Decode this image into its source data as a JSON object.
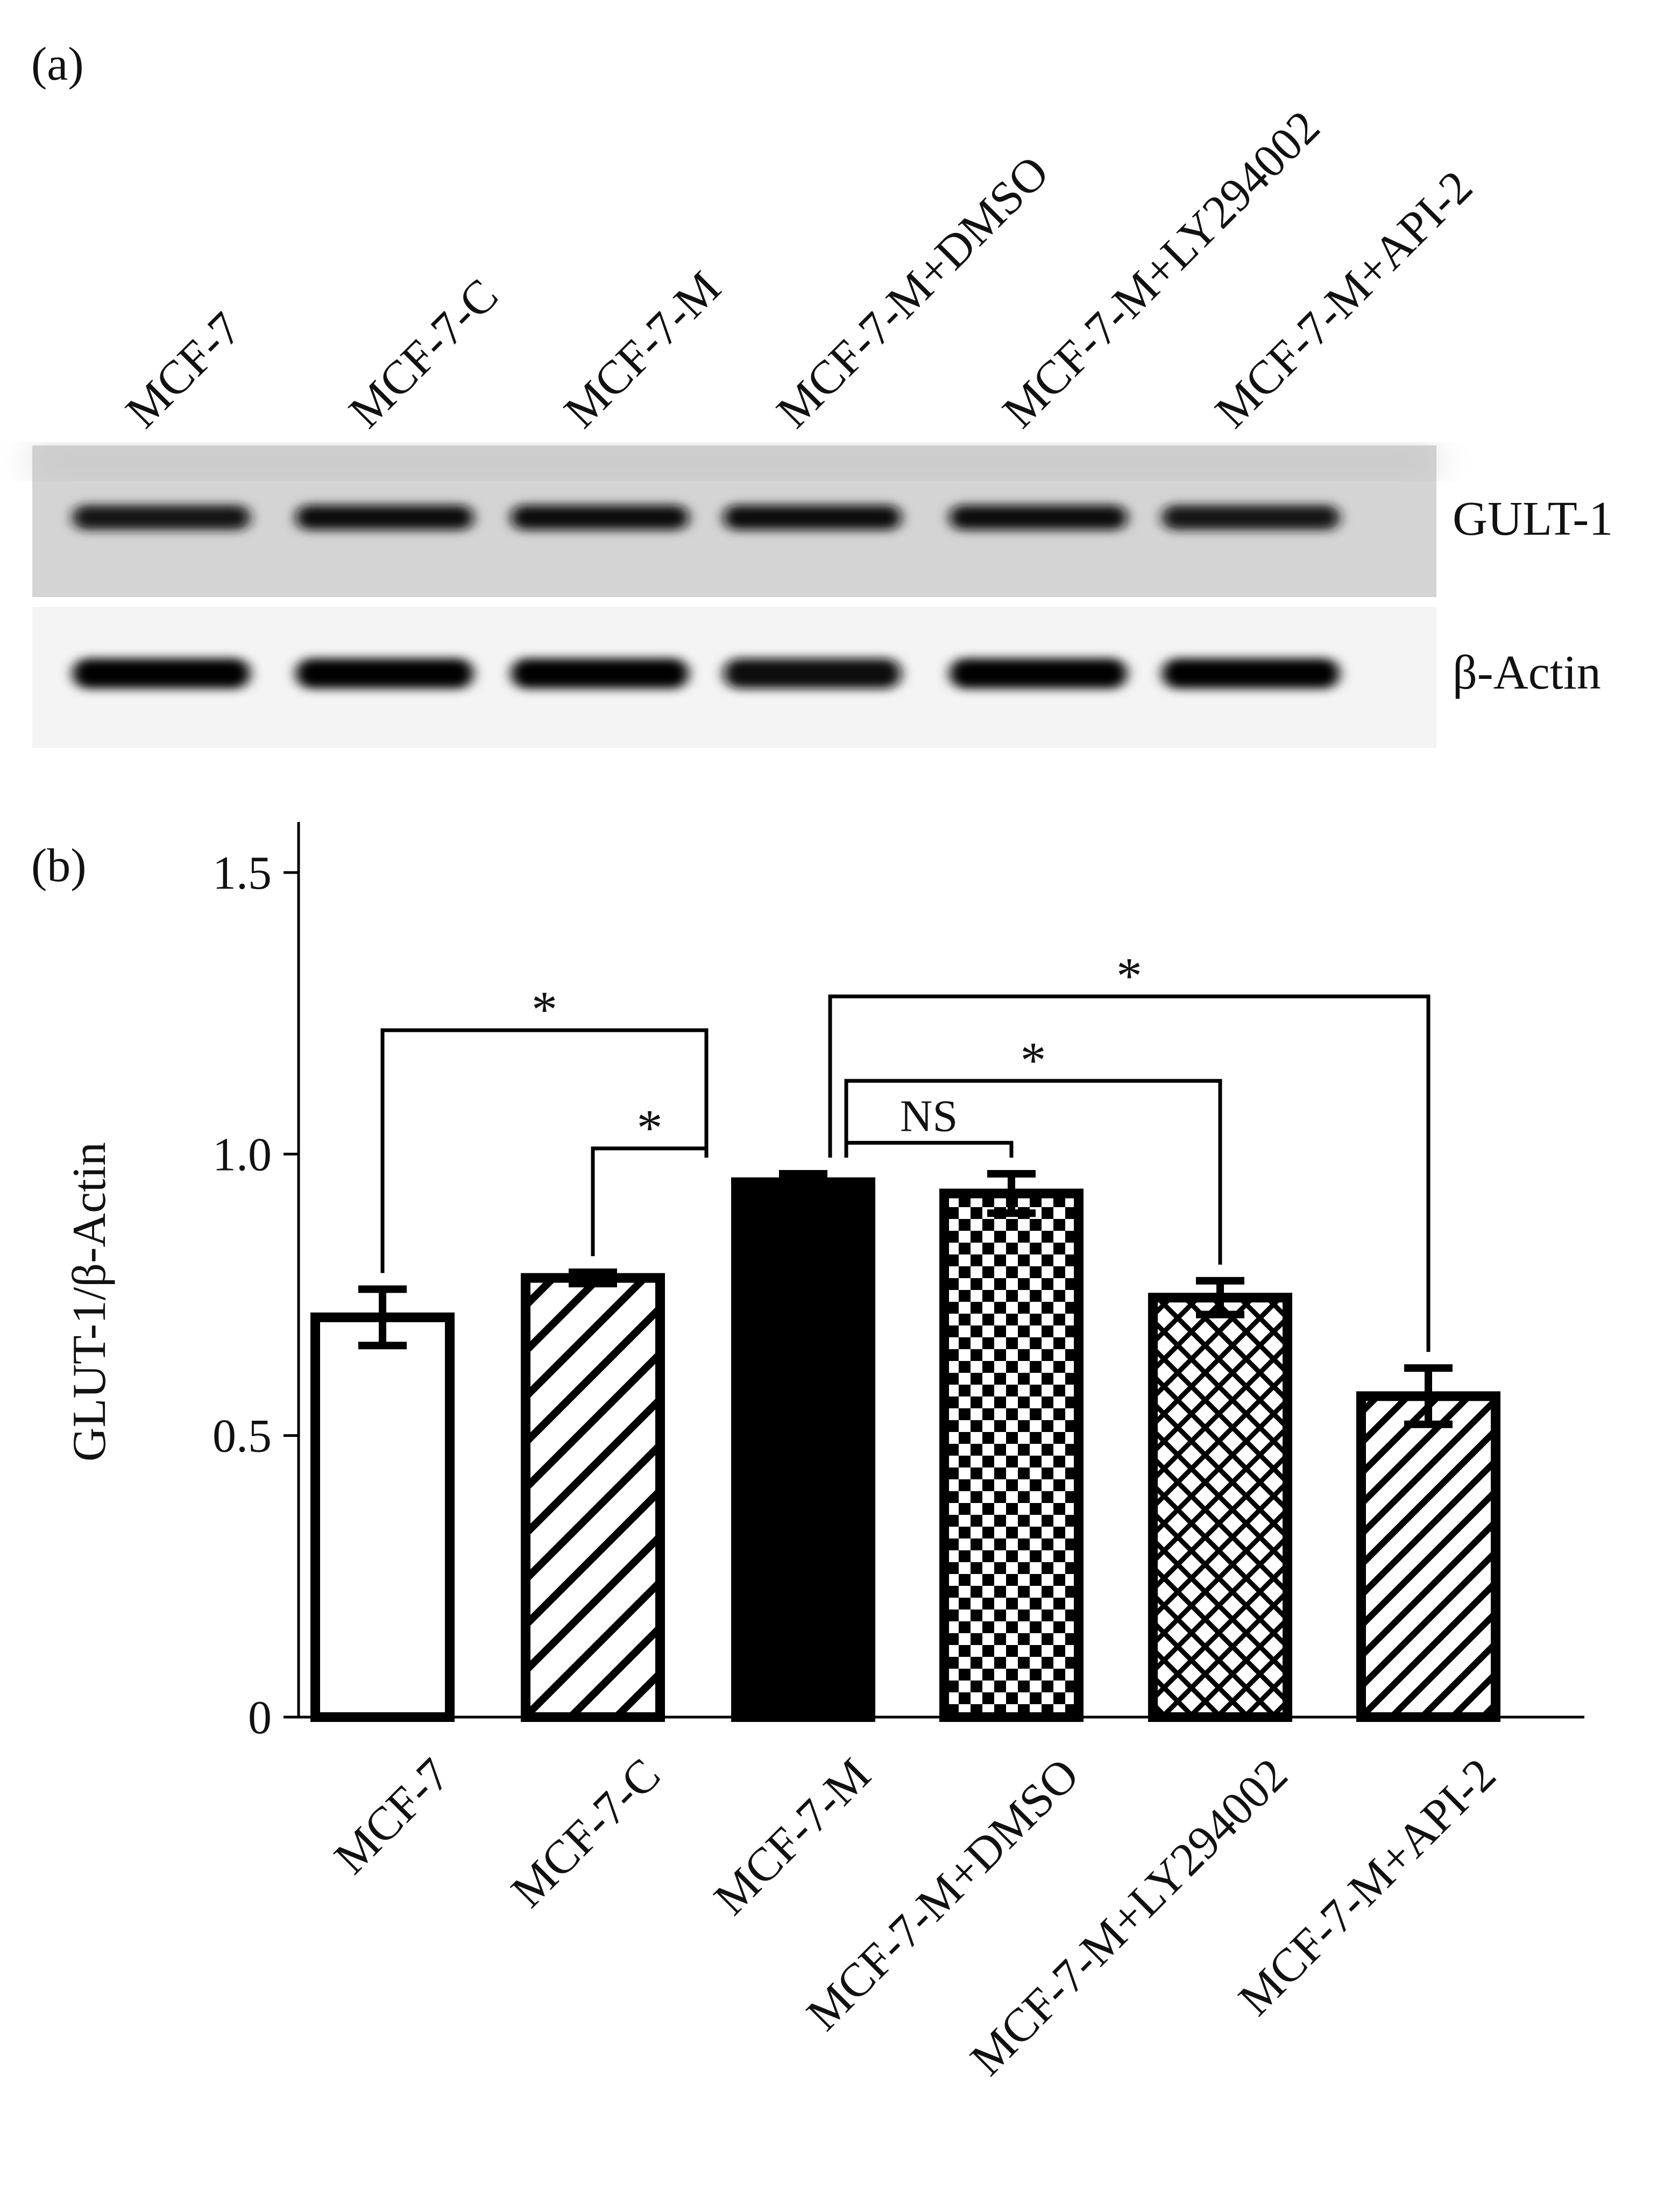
{
  "panel_a": {
    "label": "(a)",
    "lanes": [
      "MCF-7",
      "MCF-7-C",
      "MCF-7-M",
      "MCF-7-M+DMSO",
      "MCF-7-M+LY294002",
      "MCF-7-M+API-2"
    ],
    "blots": [
      {
        "label": "GULT-1",
        "band_intensity": [
          0.78,
          0.84,
          0.9,
          0.88,
          0.82,
          0.78
        ]
      },
      {
        "label": "β-Actin",
        "band_intensity": [
          0.95,
          0.95,
          0.95,
          0.92,
          0.95,
          0.98
        ]
      }
    ]
  },
  "chart_data": {
    "type": "bar",
    "panel_label": "(b)",
    "title": "",
    "xlabel": "",
    "ylabel": "GLUT-1/β-Actin",
    "ylim": [
      0,
      1.6
    ],
    "yticks": [
      0,
      0.5,
      1.0,
      1.5
    ],
    "ytick_labels": [
      "0",
      "0.5",
      "1.0",
      "1.5"
    ],
    "categories": [
      "MCF-7",
      "MCF-7-C",
      "MCF-7-M",
      "MCF-7-M+DMSO",
      "MCF-7-M+LY294002",
      "MCF-7-M+API-2"
    ],
    "values": [
      0.71,
      0.78,
      0.95,
      0.93,
      0.745,
      0.57
    ],
    "errors": [
      0.05,
      0.01,
      0.015,
      0.035,
      0.03,
      0.05
    ],
    "patterns": [
      "none",
      "diagonal",
      "solid",
      "checker",
      "crosshatch",
      "diagonal-dense"
    ],
    "significance": [
      {
        "from": 0,
        "to": 2,
        "label": "*",
        "y": 1.22
      },
      {
        "from": 1,
        "to": 2,
        "label": "*",
        "y": 1.01
      },
      {
        "from": 2,
        "to": 3,
        "label": "NS",
        "y": 1.02
      },
      {
        "from": 2,
        "to": 4,
        "label": "*",
        "y": 1.13
      },
      {
        "from": 2,
        "to": 5,
        "label": "*",
        "y": 1.28
      }
    ],
    "colors": {
      "bar_stroke": "#000000",
      "bar_fill_light": "#ffffff",
      "bar_fill_dark": "#000000"
    }
  }
}
